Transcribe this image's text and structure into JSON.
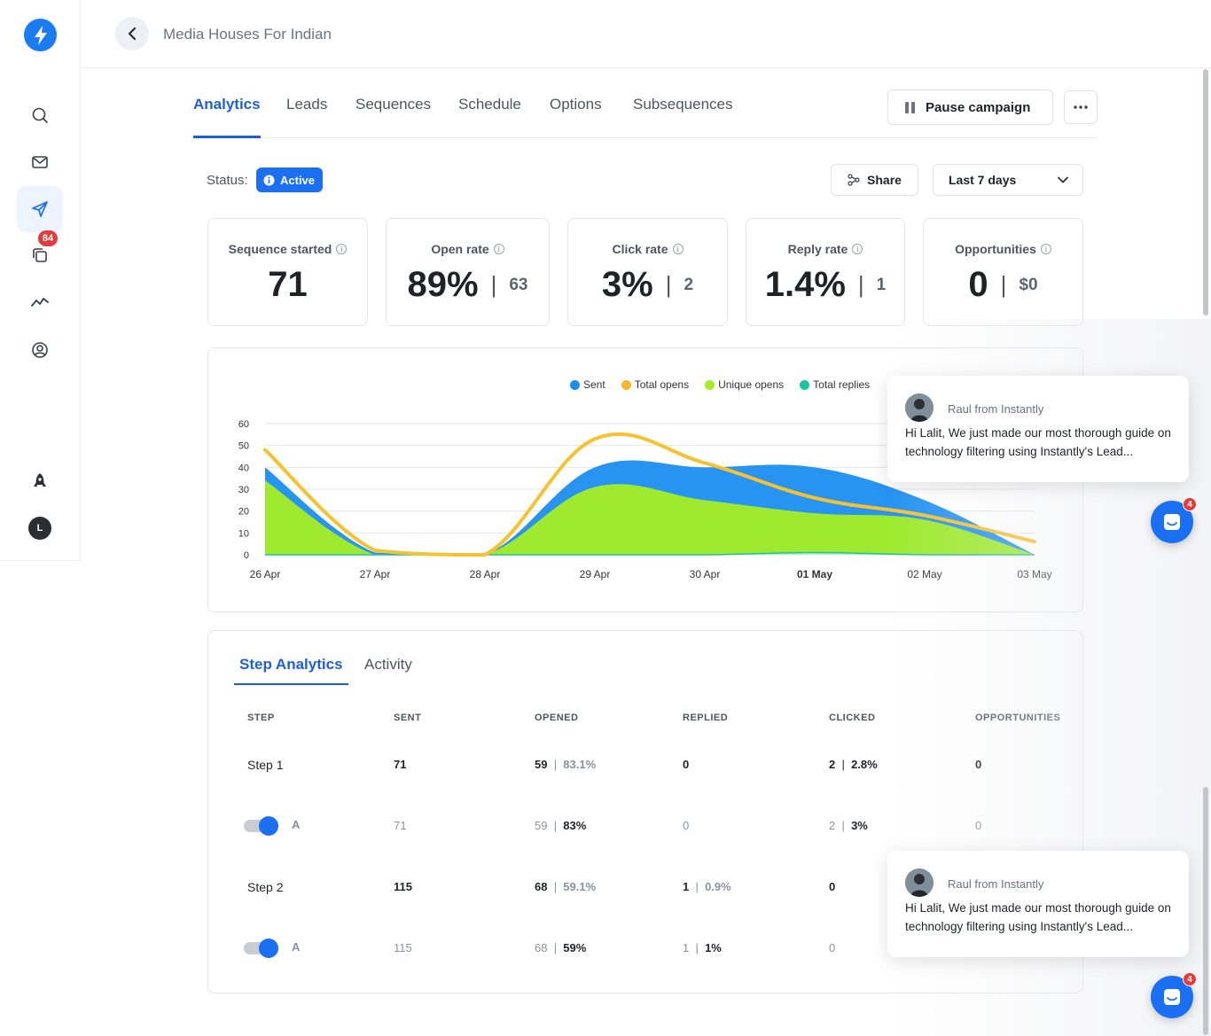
{
  "sidebar": {
    "badge_count": "84",
    "avatar_initial": "L",
    "items": [
      {
        "name": "search"
      },
      {
        "name": "inbox"
      },
      {
        "name": "campaigns"
      },
      {
        "name": "templates"
      },
      {
        "name": "analytics"
      },
      {
        "name": "account"
      }
    ]
  },
  "header": {
    "title": "Media Houses For Indian"
  },
  "tabs": [
    {
      "label": "Analytics",
      "active": true
    },
    {
      "label": "Leads"
    },
    {
      "label": "Sequences"
    },
    {
      "label": "Schedule"
    },
    {
      "label": "Options"
    },
    {
      "label": "Subsequences"
    }
  ],
  "toolbar": {
    "pause_label": "Pause campaign"
  },
  "status": {
    "label": "Status:",
    "value": "Active",
    "share_label": "Share",
    "range_label": "Last 7 days"
  },
  "stats": [
    {
      "label": "Sequence started",
      "value": "71",
      "sub": ""
    },
    {
      "label": "Open rate",
      "value": "89%",
      "sub": "63"
    },
    {
      "label": "Click rate",
      "value": "3%",
      "sub": "2"
    },
    {
      "label": "Reply rate",
      "value": "1.4%",
      "sub": "1"
    },
    {
      "label": "Opportunities",
      "value": "0",
      "sub": "$0"
    }
  ],
  "chart_data": {
    "type": "area",
    "categories": [
      "26 Apr",
      "27 Apr",
      "28 Apr",
      "29 Apr",
      "30 Apr",
      "01 May",
      "02 May",
      "03 May"
    ],
    "highlight_category": "01 May",
    "ylim": [
      0,
      60
    ],
    "yticks": [
      0,
      10,
      20,
      30,
      40,
      50,
      60
    ],
    "legend_position": "top",
    "series": [
      {
        "name": "Sent",
        "color": "#1b8ef0",
        "values": [
          40,
          1,
          0,
          40,
          40,
          40,
          25,
          0
        ]
      },
      {
        "name": "Total opens",
        "color": "#f6c230",
        "values": [
          48,
          2,
          0,
          53,
          42,
          26,
          18,
          6
        ]
      },
      {
        "name": "Unique opens",
        "color": "#a5ee24",
        "values": [
          34,
          0,
          0,
          31,
          25,
          19,
          16,
          0
        ]
      },
      {
        "name": "Total replies",
        "color": "#19c59e",
        "values": [
          0,
          0,
          0,
          0,
          0,
          1,
          0,
          0
        ]
      }
    ]
  },
  "step_analytics": {
    "tabs": [
      {
        "label": "Step Analytics",
        "active": true
      },
      {
        "label": "Activity"
      }
    ],
    "columns": [
      "STEP",
      "SENT",
      "OPENED",
      "REPLIED",
      "CLICKED",
      "OPPORTUNITIES"
    ],
    "rows": [
      {
        "kind": "step",
        "step": "Step 1",
        "sent": "71",
        "opened": "59",
        "opened_pct": "83.1%",
        "replied": "0",
        "replied_pct": "",
        "clicked": "2",
        "clicked_pct": "2.8%",
        "opps": "0"
      },
      {
        "kind": "variant",
        "step": "A",
        "sent": "71",
        "opened": "59",
        "opened_pct": "83%",
        "replied": "0",
        "replied_pct": "",
        "clicked": "2",
        "clicked_pct": "3%",
        "opps": "0"
      },
      {
        "kind": "step",
        "step": "Step 2",
        "sent": "115",
        "opened": "68",
        "opened_pct": "59.1%",
        "replied": "1",
        "replied_pct": "0.9%",
        "clicked": "0",
        "clicked_pct": "",
        "opps": ""
      },
      {
        "kind": "variant",
        "step": "A",
        "sent": "115",
        "opened": "68",
        "opened_pct": "59%",
        "replied": "1",
        "replied_pct": "1%",
        "clicked": "0",
        "clicked_pct": "",
        "opps": ""
      }
    ]
  },
  "chat": {
    "from": "Raul from Instantly",
    "message": "Hi Lalit, We just made our most thorough guide on technology filtering using Instantly's Lead...",
    "badge": "4"
  }
}
